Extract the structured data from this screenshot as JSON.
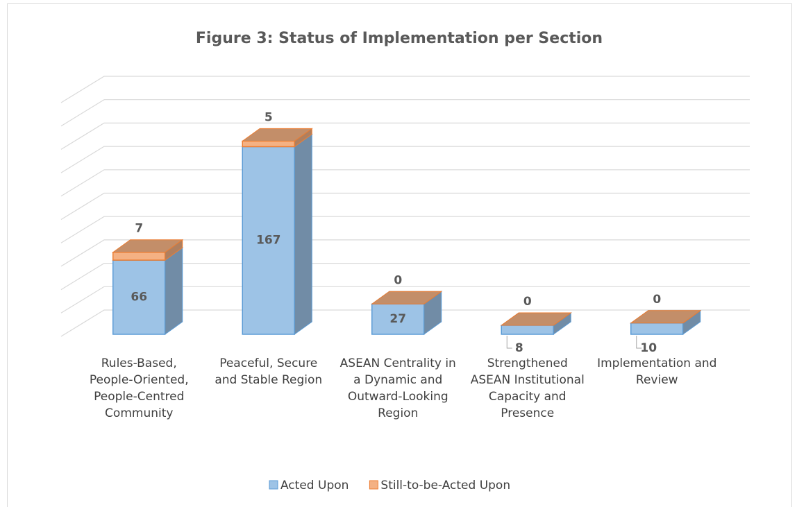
{
  "chart_data": {
    "type": "bar3d_stacked",
    "title": "Figure 3: Status of Implementation per Section",
    "categories": [
      "Rules-Based, People-Oriented, People-Centred Community",
      "Peaceful, Secure and Stable Region",
      "ASEAN Centrality in a Dynamic and Outward-Looking Region",
      "Strengthened ASEAN Institutional Capacity and Presence",
      "Implementation and Review"
    ],
    "series": [
      {
        "name": "Acted Upon",
        "color": "#9dc3e6",
        "values": [
          66,
          167,
          27,
          8,
          10
        ]
      },
      {
        "name": "Still-to-be-Acted Upon",
        "color": "#f4b183",
        "values": [
          7,
          5,
          0,
          0,
          0
        ]
      }
    ],
    "ylim": [
      0,
      200
    ],
    "yticks": [
      0,
      20,
      40,
      60,
      80,
      100,
      120,
      140,
      160,
      180,
      200
    ],
    "grid": true,
    "legend": "bottom"
  }
}
